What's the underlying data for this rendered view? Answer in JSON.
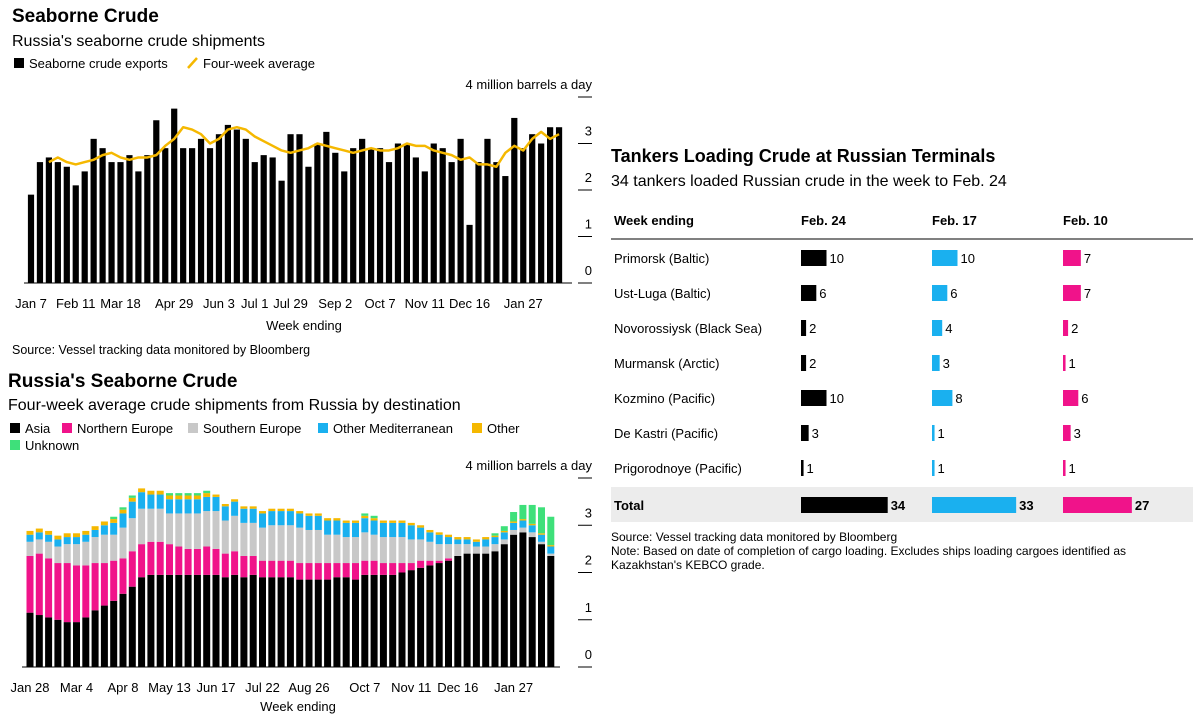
{
  "chart_data": [
    {
      "type": "bar",
      "title": "Seaborne Crude",
      "subtitle": "Russia's seaborne crude shipments",
      "x_label": "Week ending",
      "source": "Source: Vessel tracking data monitored by Bloomberg",
      "categories": [
        "Jan 7",
        null,
        null,
        null,
        null,
        "Feb 11",
        null,
        null,
        null,
        null,
        "Mar 18",
        null,
        null,
        null,
        null,
        null,
        "Apr 29",
        null,
        null,
        null,
        null,
        "Jun 3",
        null,
        null,
        null,
        "Jul 1",
        null,
        null,
        null,
        "Jul 29",
        null,
        null,
        null,
        null,
        "Sep 2",
        null,
        null,
        null,
        null,
        "Oct 7",
        null,
        null,
        null,
        null,
        "Nov 11",
        null,
        null,
        null,
        null,
        "Dec 16",
        null,
        null,
        null,
        null,
        null,
        "Jan 27",
        null,
        null,
        null,
        null
      ],
      "series": [
        {
          "name": "Seaborne crude exports",
          "color": "#000000",
          "values": [
            1.9,
            2.6,
            2.7,
            2.6,
            2.5,
            2.1,
            2.4,
            3.1,
            2.9,
            2.6,
            2.6,
            2.75,
            2.4,
            2.75,
            3.5,
            2.9,
            3.75,
            2.9,
            2.9,
            3.1,
            2.9,
            3.2,
            3.4,
            3.3,
            3.1,
            2.6,
            2.75,
            2.7,
            2.2,
            3.2,
            3.2,
            2.5,
            3.0,
            3.25,
            2.8,
            2.4,
            2.9,
            3.1,
            2.9,
            2.9,
            2.6,
            3.0,
            3.0,
            2.7,
            2.4,
            3.0,
            2.9,
            2.6,
            3.1,
            1.25,
            2.6,
            3.1,
            2.6,
            2.3,
            3.55,
            2.9,
            3.2,
            3.0,
            3.35,
            3.35
          ]
        },
        {
          "name": "Four-week average",
          "color": "#f5b800",
          "type": "line",
          "values": [
            null,
            null,
            2.6,
            2.7,
            2.6,
            2.55,
            2.6,
            2.65,
            2.75,
            2.8,
            2.7,
            2.65,
            2.7,
            2.7,
            2.75,
            2.95,
            3.1,
            3.35,
            3.3,
            3.2,
            3.0,
            3.1,
            3.3,
            3.35,
            3.3,
            3.15,
            3.05,
            2.95,
            2.85,
            2.8,
            2.85,
            2.9,
            3.0,
            2.95,
            2.9,
            2.85,
            2.8,
            2.85,
            2.9,
            2.85,
            2.85,
            2.9,
            3.0,
            2.95,
            2.95,
            2.85,
            2.8,
            2.75,
            2.65,
            2.7,
            2.55,
            2.55,
            2.5,
            2.8,
            2.95,
            2.85,
            3.1,
            3.25,
            3.1,
            3.2
          ]
        }
      ],
      "ylim": [
        0,
        4
      ],
      "yticks": [
        0,
        1,
        2,
        3,
        {
          "value": 4,
          "label": "4 million barrels a day"
        }
      ]
    },
    {
      "type": "stacked_bar",
      "title": "Russia's Seaborne Crude",
      "subtitle": "Four-week average crude shipments from Russia by destination",
      "x_label": "Week ending",
      "categories": [
        "Jan 28",
        null,
        null,
        null,
        null,
        "Mar 4",
        null,
        null,
        null,
        null,
        "Apr 8",
        null,
        null,
        null,
        null,
        "May 13",
        null,
        null,
        null,
        null,
        "Jun 17",
        null,
        null,
        null,
        null,
        "Jul 22",
        null,
        null,
        null,
        null,
        "Aug 26",
        null,
        null,
        null,
        null,
        null,
        "Oct 7",
        null,
        null,
        null,
        null,
        "Nov 11",
        null,
        null,
        null,
        null,
        "Dec 16",
        null,
        null,
        null,
        null,
        null,
        "Jan 27",
        null,
        null,
        null,
        null
      ],
      "series": [
        {
          "name": "Asia",
          "color": "#000000",
          "values": [
            1.15,
            1.1,
            1.05,
            1.0,
            0.95,
            0.95,
            1.05,
            1.2,
            1.3,
            1.4,
            1.55,
            1.7,
            1.9,
            1.95,
            1.95,
            1.95,
            1.95,
            1.95,
            1.95,
            1.95,
            1.95,
            1.9,
            1.95,
            1.9,
            1.95,
            1.9,
            1.9,
            1.9,
            1.9,
            1.85,
            1.85,
            1.85,
            1.85,
            1.9,
            1.9,
            1.85,
            1.95,
            1.95,
            1.95,
            1.95,
            2.0,
            2.05,
            2.1,
            2.15,
            2.2,
            2.25,
            2.35,
            2.4,
            2.4,
            2.4,
            2.45,
            2.6,
            2.8,
            2.85,
            2.75,
            2.6,
            2.35
          ]
        },
        {
          "name": "Northern Europe",
          "color": "#f0138a",
          "values": [
            1.2,
            1.3,
            1.25,
            1.2,
            1.25,
            1.2,
            1.1,
            1.0,
            0.9,
            0.85,
            0.75,
            0.75,
            0.7,
            0.7,
            0.7,
            0.65,
            0.6,
            0.55,
            0.55,
            0.6,
            0.55,
            0.5,
            0.5,
            0.45,
            0.4,
            0.35,
            0.35,
            0.35,
            0.35,
            0.35,
            0.35,
            0.35,
            0.35,
            0.3,
            0.3,
            0.35,
            0.3,
            0.3,
            0.25,
            0.25,
            0.2,
            0.15,
            0.15,
            0.1,
            0.05,
            0.05,
            0,
            0,
            0,
            0,
            0,
            0,
            0,
            0,
            0,
            0,
            0
          ]
        },
        {
          "name": "Southern Europe",
          "color": "#c8c8c8",
          "values": [
            0.3,
            0.3,
            0.35,
            0.35,
            0.4,
            0.45,
            0.5,
            0.55,
            0.6,
            0.55,
            0.65,
            0.7,
            0.75,
            0.7,
            0.7,
            0.65,
            0.7,
            0.75,
            0.75,
            0.75,
            0.8,
            0.7,
            0.75,
            0.7,
            0.7,
            0.7,
            0.75,
            0.75,
            0.75,
            0.75,
            0.7,
            0.7,
            0.6,
            0.6,
            0.55,
            0.55,
            0.6,
            0.55,
            0.55,
            0.55,
            0.55,
            0.5,
            0.45,
            0.4,
            0.35,
            0.3,
            0.25,
            0.2,
            0.15,
            0.15,
            0.15,
            0.1,
            0.1,
            0.1,
            0.1,
            0.05,
            0.05
          ]
        },
        {
          "name": "Other Mediterranean",
          "color": "#1ab0ef",
          "values": [
            0.15,
            0.15,
            0.15,
            0.15,
            0.15,
            0.15,
            0.15,
            0.15,
            0.2,
            0.25,
            0.3,
            0.35,
            0.35,
            0.3,
            0.3,
            0.3,
            0.3,
            0.3,
            0.3,
            0.3,
            0.3,
            0.3,
            0.3,
            0.3,
            0.3,
            0.3,
            0.3,
            0.3,
            0.3,
            0.3,
            0.3,
            0.3,
            0.3,
            0.3,
            0.3,
            0.3,
            0.3,
            0.3,
            0.3,
            0.3,
            0.3,
            0.3,
            0.25,
            0.2,
            0.2,
            0.15,
            0.1,
            0.1,
            0.1,
            0.15,
            0.15,
            0.15,
            0.15,
            0.15,
            0.15,
            0.15,
            0.15
          ]
        },
        {
          "name": "Other",
          "color": "#f5b800",
          "values": [
            0.08,
            0.08,
            0.08,
            0.08,
            0.08,
            0.08,
            0.08,
            0.08,
            0.08,
            0.08,
            0.08,
            0.08,
            0.08,
            0.08,
            0.08,
            0.08,
            0.08,
            0.08,
            0.08,
            0.08,
            0.05,
            0.05,
            0.05,
            0.05,
            0.05,
            0.05,
            0.05,
            0.05,
            0.05,
            0.05,
            0.05,
            0.05,
            0.05,
            0.05,
            0.05,
            0.05,
            0.05,
            0.05,
            0.05,
            0.05,
            0.05,
            0.05,
            0.05,
            0.05,
            0.05,
            0.05,
            0.05,
            0.05,
            0.05,
            0.05,
            0.03,
            0.03,
            0.03,
            0.03,
            0.03,
            0.03,
            0.03
          ]
        },
        {
          "name": "Unknown",
          "color": "#3ee07a",
          "values": [
            0,
            0,
            0,
            0,
            0,
            0,
            0,
            0,
            0,
            0.05,
            0.05,
            0.05,
            0,
            0,
            0,
            0.05,
            0.05,
            0.05,
            0.05,
            0.05,
            0,
            0,
            0,
            0,
            0,
            0,
            0,
            0,
            0,
            0,
            0,
            0,
            0,
            0,
            0,
            0,
            0.05,
            0.05,
            0,
            0,
            0,
            0,
            0,
            0,
            0,
            0,
            0,
            0,
            0,
            0,
            0.05,
            0.1,
            0.2,
            0.3,
            0.4,
            0.55,
            0.6
          ]
        }
      ],
      "ylim": [
        0,
        4
      ],
      "yticks": [
        0,
        1,
        2,
        3,
        {
          "value": 4,
          "label": "4 million barrels a day"
        }
      ]
    }
  ],
  "table": {
    "title": "Tankers Loading Crude at Russian Terminals",
    "subtitle": "34 tankers loaded Russian crude in the week to Feb. 24",
    "columns": [
      "Week ending",
      "Feb. 24",
      "Feb. 17",
      "Feb. 10"
    ],
    "colors": [
      "#000000",
      "#1ab0ef",
      "#f0138a"
    ],
    "rows": [
      [
        "Primorsk (Baltic)",
        10,
        10,
        7
      ],
      [
        "Ust-Luga (Baltic)",
        6,
        6,
        7
      ],
      [
        "Novorossiysk (Black Sea)",
        2,
        4,
        2
      ],
      [
        "Murmansk (Arctic)",
        2,
        3,
        1
      ],
      [
        "Kozmino (Pacific)",
        10,
        8,
        6
      ],
      [
        "De Kastri (Pacific)",
        3,
        1,
        3
      ],
      [
        "Prigorodnoye (Pacific)",
        1,
        1,
        1
      ]
    ],
    "total": [
      "Total",
      34,
      33,
      27
    ],
    "source": "Source: Vessel tracking data monitored by Bloomberg",
    "note": "Note: Based on date of completion of cargo loading. Excludes ships loading cargoes identified as Kazakhstan's KEBCO grade."
  }
}
